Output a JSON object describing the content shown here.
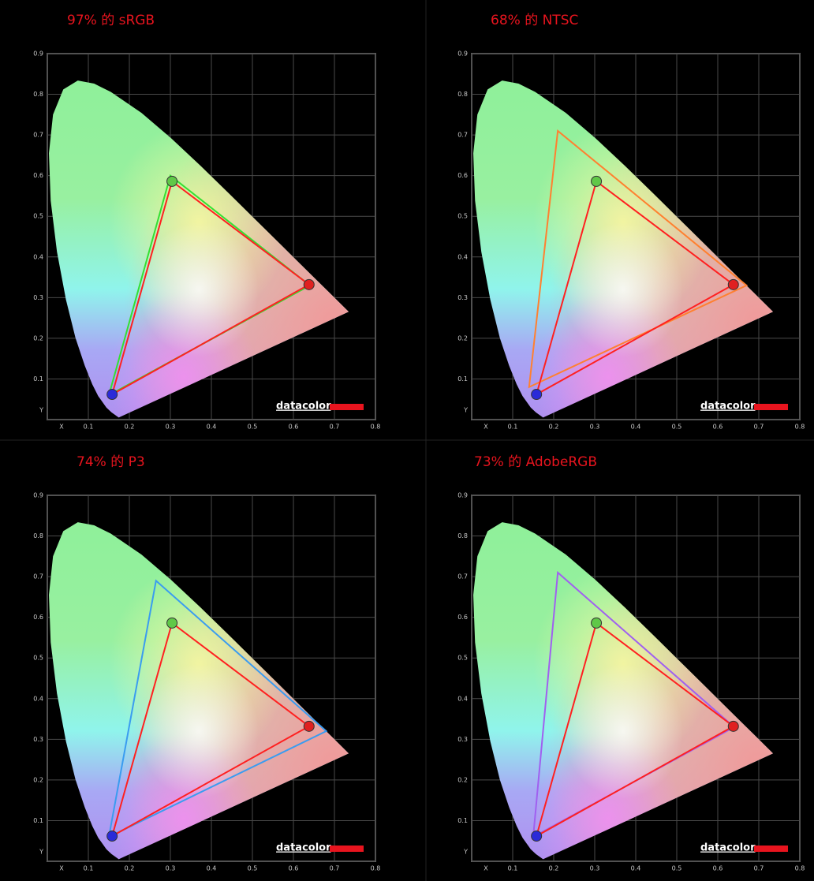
{
  "chart_data": [
    {
      "type": "gamut",
      "title": "97% 的 sRGB",
      "brand": "datacolor",
      "xlim": [
        0,
        0.8
      ],
      "ylim": [
        0,
        0.9
      ],
      "grid": true,
      "xticks": [
        {
          "value": 0,
          "label": "X"
        },
        0.1,
        0.2,
        0.3,
        0.4,
        0.5,
        0.6,
        0.7,
        0.8
      ],
      "yticks": [
        {
          "value": 0,
          "label": "Y"
        },
        0.1,
        0.2,
        0.3,
        0.4,
        0.5,
        0.6,
        0.7,
        0.8,
        0.9
      ],
      "series": [
        {
          "color": "#33e033",
          "x": [
            0.64,
            0.3,
            0.15
          ],
          "values": [
            0.33,
            0.6,
            0.06
          ]
        },
        {
          "color": "#ff2020",
          "x": [
            0.638,
            0.304,
            0.158
          ],
          "values": [
            0.332,
            0.586,
            0.062
          ],
          "point_colors": [
            "#e02020",
            "#60c848",
            "#2a2ad8"
          ]
        }
      ]
    },
    {
      "type": "gamut",
      "title": "68% 的 NTSC",
      "brand": "datacolor",
      "xlim": [
        0,
        0.8
      ],
      "ylim": [
        0,
        0.9
      ],
      "grid": true,
      "xticks": [
        {
          "value": 0,
          "label": "X"
        },
        0.1,
        0.2,
        0.3,
        0.4,
        0.5,
        0.6,
        0.7,
        0.8
      ],
      "yticks": [
        {
          "value": 0,
          "label": "Y"
        },
        0.1,
        0.2,
        0.3,
        0.4,
        0.5,
        0.6,
        0.7,
        0.8,
        0.9
      ],
      "series": [
        {
          "color": "#ff8030",
          "x": [
            0.67,
            0.21,
            0.14
          ],
          "values": [
            0.33,
            0.71,
            0.08
          ]
        },
        {
          "color": "#ff2020",
          "x": [
            0.638,
            0.304,
            0.158
          ],
          "values": [
            0.332,
            0.586,
            0.062
          ],
          "point_colors": [
            "#e02020",
            "#60c848",
            "#2a2ad8"
          ]
        }
      ]
    },
    {
      "type": "gamut",
      "title": "74% 的 P3",
      "brand": "datacolor",
      "xlim": [
        0,
        0.8
      ],
      "ylim": [
        0,
        0.9
      ],
      "grid": true,
      "xticks": [
        {
          "value": 0,
          "label": "X"
        },
        0.1,
        0.2,
        0.3,
        0.4,
        0.5,
        0.6,
        0.7,
        0.8
      ],
      "yticks": [
        {
          "value": 0,
          "label": "Y"
        },
        0.1,
        0.2,
        0.3,
        0.4,
        0.5,
        0.6,
        0.7,
        0.8,
        0.9
      ],
      "series": [
        {
          "color": "#3a9cf0",
          "x": [
            0.68,
            0.265,
            0.15
          ],
          "values": [
            0.32,
            0.69,
            0.06
          ]
        },
        {
          "color": "#ff2020",
          "x": [
            0.638,
            0.304,
            0.158
          ],
          "values": [
            0.332,
            0.586,
            0.062
          ],
          "point_colors": [
            "#e02020",
            "#60c848",
            "#2a2ad8"
          ]
        }
      ]
    },
    {
      "type": "gamut",
      "title": "73% 的 AdobeRGB",
      "brand": "datacolor",
      "xlim": [
        0,
        0.8
      ],
      "ylim": [
        0,
        0.9
      ],
      "grid": true,
      "xticks": [
        {
          "value": 0,
          "label": "X"
        },
        0.1,
        0.2,
        0.3,
        0.4,
        0.5,
        0.6,
        0.7,
        0.8
      ],
      "yticks": [
        {
          "value": 0,
          "label": "Y"
        },
        0.1,
        0.2,
        0.3,
        0.4,
        0.5,
        0.6,
        0.7,
        0.8,
        0.9
      ],
      "series": [
        {
          "color": "#a060f0",
          "x": [
            0.64,
            0.21,
            0.15
          ],
          "values": [
            0.33,
            0.71,
            0.06
          ]
        },
        {
          "color": "#ff2020",
          "x": [
            0.638,
            0.304,
            0.158
          ],
          "values": [
            0.332,
            0.586,
            0.062
          ],
          "point_colors": [
            "#e02020",
            "#60c848",
            "#2a2ad8"
          ]
        }
      ]
    }
  ]
}
